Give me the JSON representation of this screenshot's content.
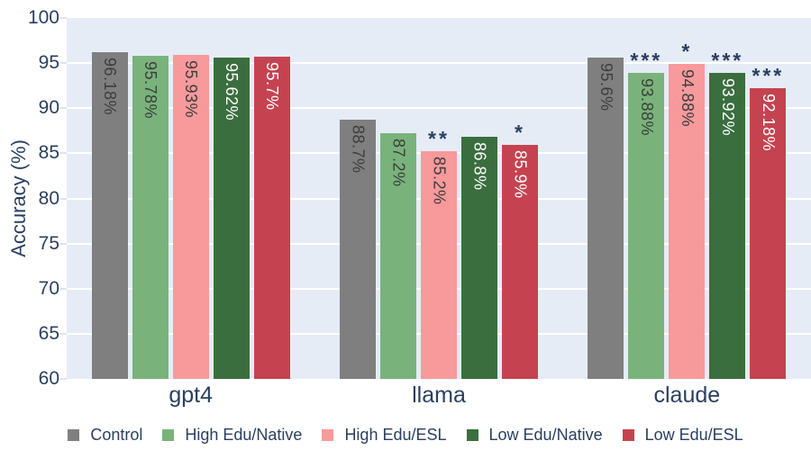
{
  "chart_data": {
    "type": "bar",
    "categories": [
      "gpt4",
      "llama",
      "claude"
    ],
    "series": [
      {
        "name": "Control",
        "color": "#7f7f7f",
        "label_color": "#3d3d3d",
        "values": [
          96.18,
          88.7,
          95.6
        ],
        "labels": [
          "96.18%",
          "88.7%",
          "95.6%"
        ],
        "significance": [
          "",
          "",
          ""
        ]
      },
      {
        "name": "High Edu/Native",
        "color": "#79b37b",
        "label_color": "#3d3d3d",
        "values": [
          95.78,
          87.2,
          93.88
        ],
        "labels": [
          "95.78%",
          "87.2%",
          "93.88%"
        ],
        "significance": [
          "",
          "",
          "***"
        ]
      },
      {
        "name": "High Edu/ESL",
        "color": "#f8999c",
        "label_color": "#3d3d3d",
        "values": [
          95.93,
          85.2,
          94.88
        ],
        "labels": [
          "95.93%",
          "85.2%",
          "94.88%"
        ],
        "significance": [
          "",
          "**",
          "*"
        ]
      },
      {
        "name": "Low Edu/Native",
        "color": "#3a6e3e",
        "label_color": "#ffffff",
        "values": [
          95.62,
          86.8,
          93.92
        ],
        "labels": [
          "95.62%",
          "86.8%",
          "93.92%"
        ],
        "significance": [
          "",
          "",
          "***"
        ]
      },
      {
        "name": "Low Edu/ESL",
        "color": "#c54350",
        "label_color": "#ffffff",
        "values": [
          95.7,
          85.9,
          92.18
        ],
        "labels": [
          "95.7%",
          "85.9%",
          "92.18%"
        ],
        "significance": [
          "",
          "*",
          "***"
        ]
      }
    ],
    "title": "",
    "xlabel": "",
    "ylabel": "Accuracy (%)",
    "ylim": [
      60,
      100
    ],
    "yticks": [
      60,
      65,
      70,
      75,
      80,
      85,
      90,
      95,
      100
    ],
    "grid": true,
    "legend_position": "bottom"
  },
  "styles": {
    "plot_background": "#e5ecf6",
    "grid_color": "#ffffff",
    "axis_text_color": "#2a3f5f",
    "significance_color": "#2a3f5f"
  }
}
